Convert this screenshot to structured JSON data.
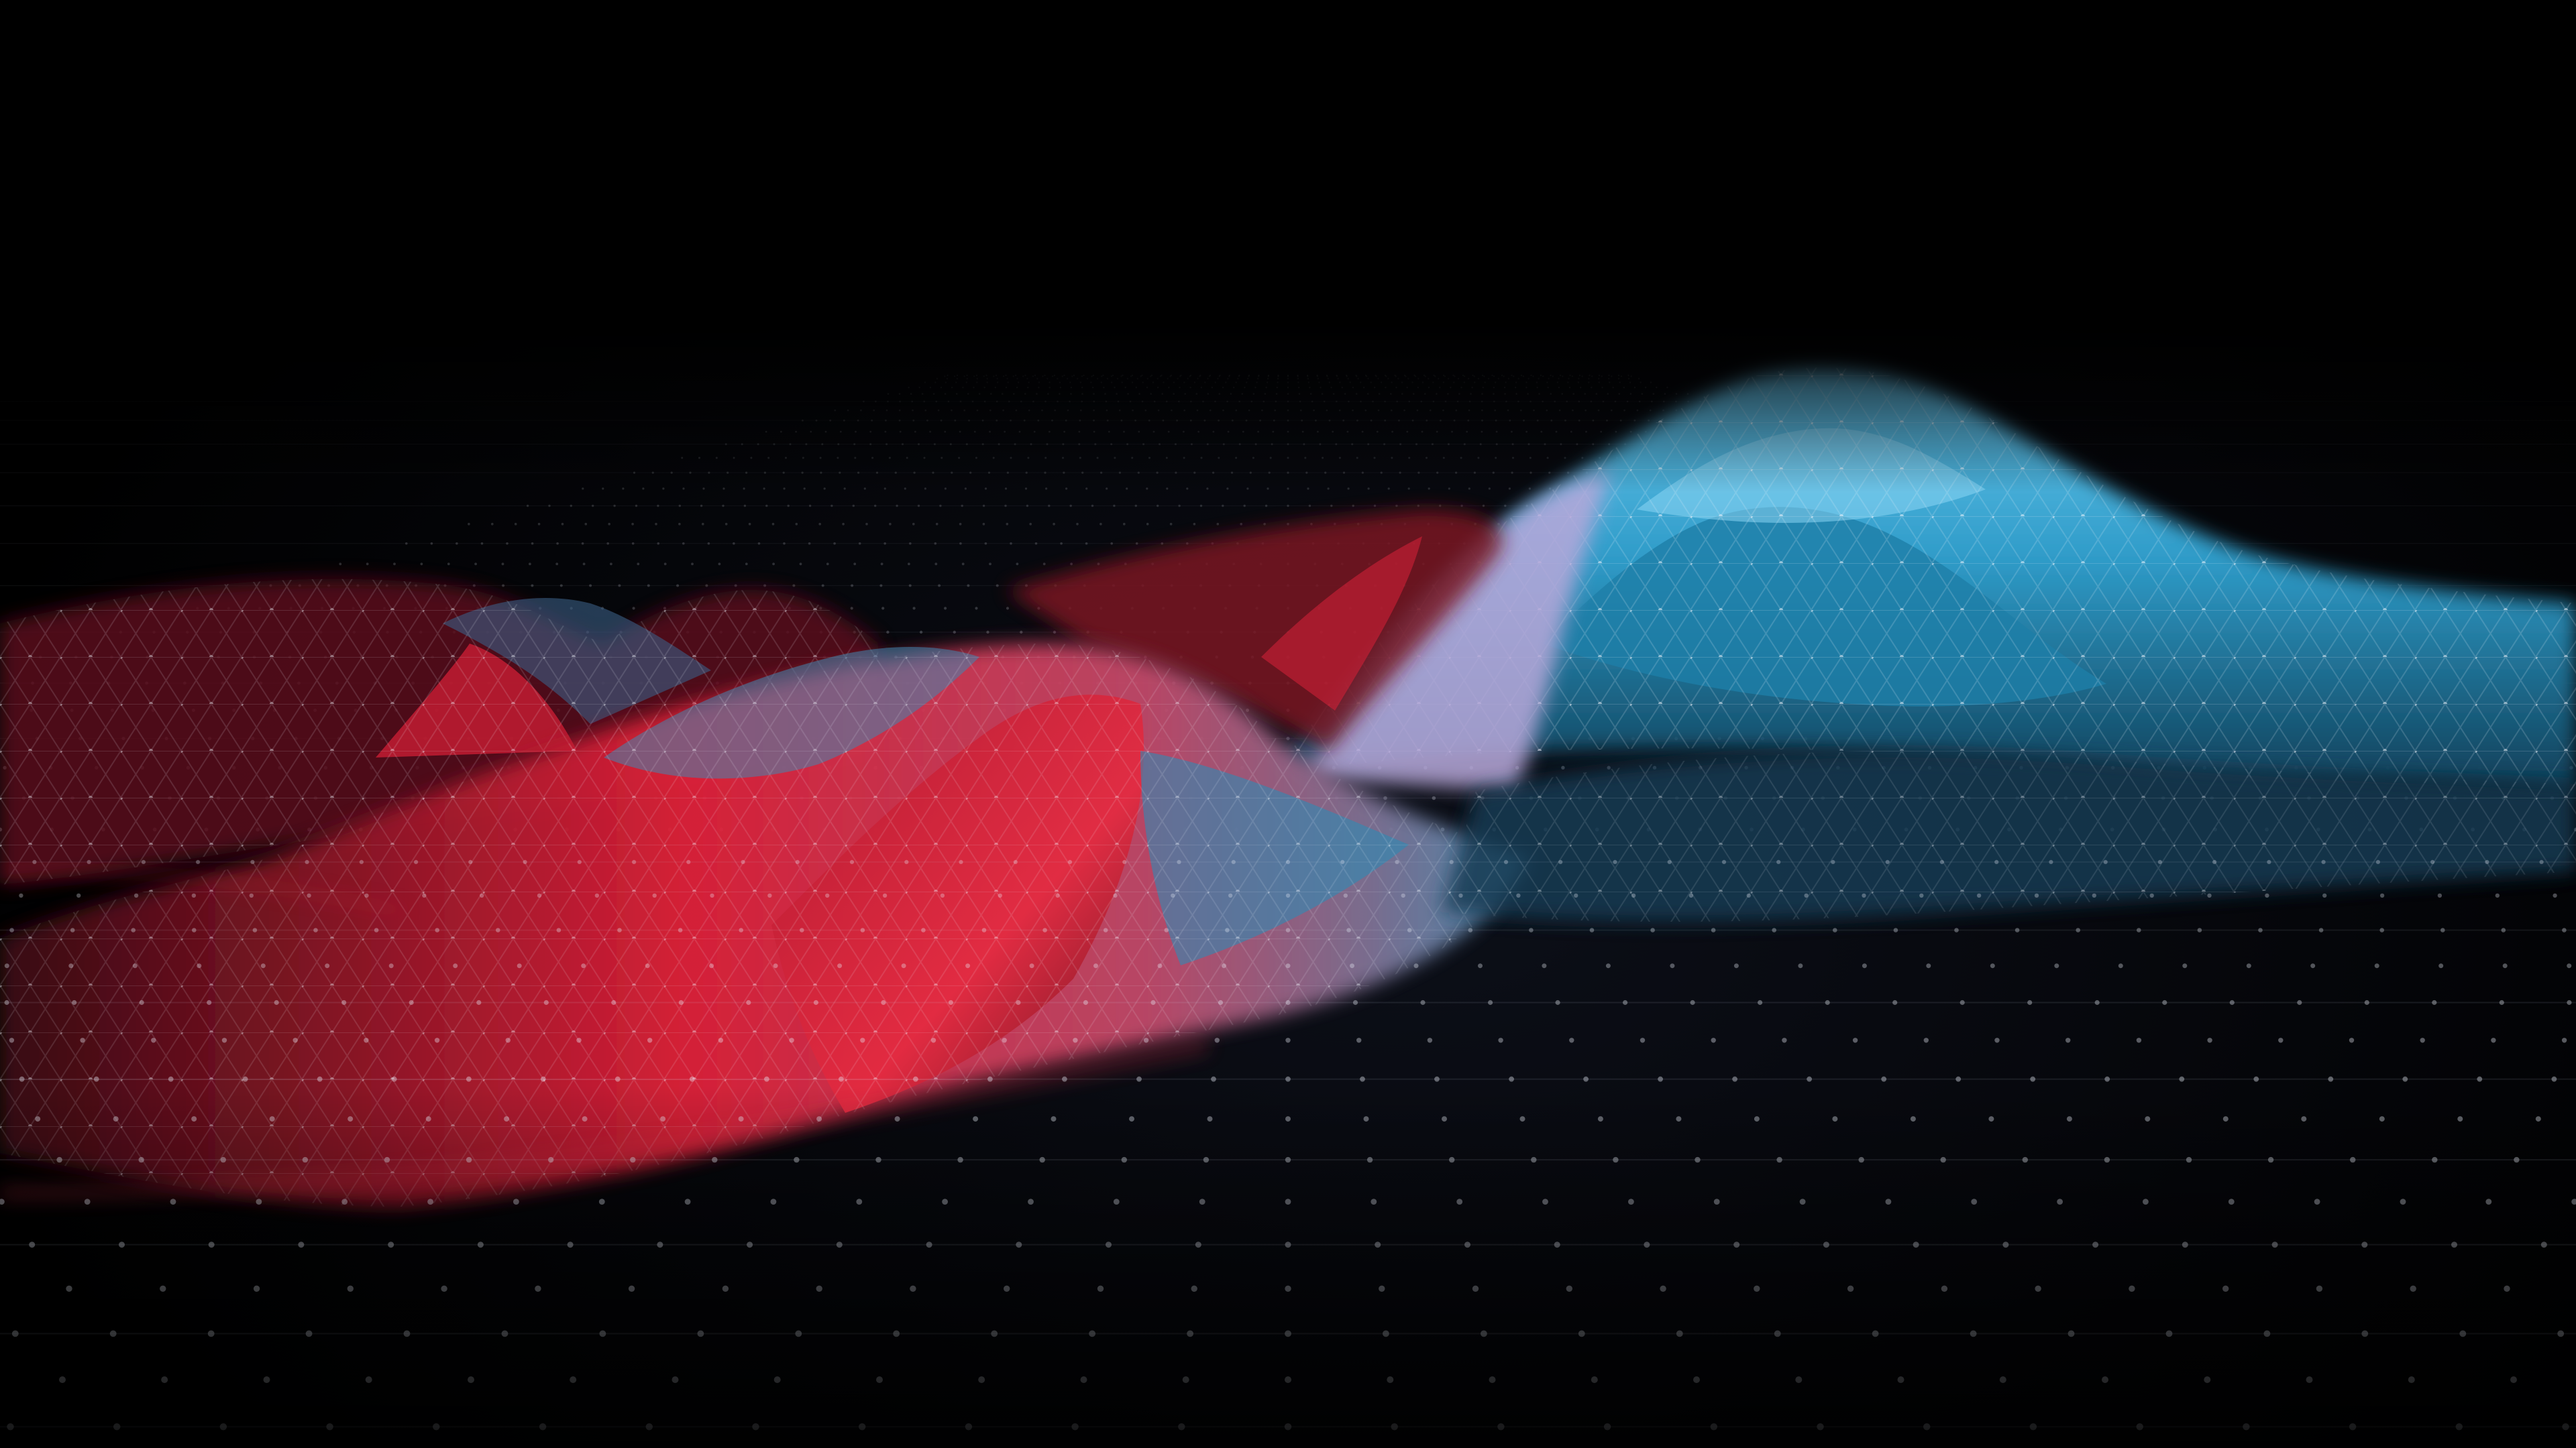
{
  "scene": {
    "subject": "wireframe-terrain",
    "background_color": "#000000",
    "palette": {
      "cyan": "#38a9d6",
      "cyan_light": "#7fd0ef",
      "lavender": "#b9a9d8",
      "red": "#e0223a",
      "red_dark": "#7a1020",
      "mesh": "#e6ecf5"
    }
  }
}
